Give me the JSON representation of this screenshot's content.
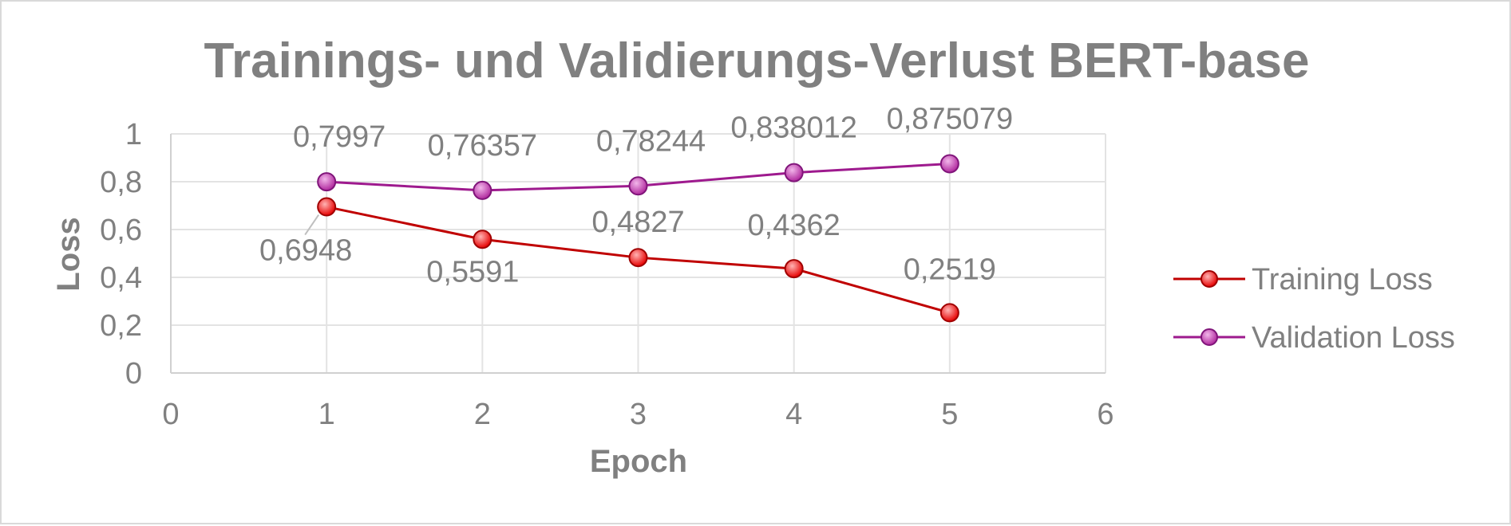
{
  "chart_data": {
    "type": "scatter",
    "title": "Trainings- und Validierungs-Verlust BERT-base",
    "xlabel": "Epoch",
    "ylabel": "Loss",
    "xlim": [
      0,
      6
    ],
    "ylim": [
      0,
      1
    ],
    "x_ticks": [
      "0",
      "1",
      "2",
      "3",
      "4",
      "5",
      "6"
    ],
    "y_ticks": [
      "0",
      "0,2",
      "0,4",
      "0,6",
      "0,8",
      "1"
    ],
    "grid": true,
    "legend_position": "right",
    "series": [
      {
        "name": "Training Loss",
        "color": "#c00000",
        "marker_color": "#ff4d4d",
        "x": [
          1,
          2,
          3,
          4,
          5
        ],
        "y": [
          0.6948,
          0.5591,
          0.4827,
          0.4362,
          0.2519
        ],
        "labels": [
          "0,6948",
          "0,5591",
          "0,4827",
          "0,4362",
          "0,2519"
        ]
      },
      {
        "name": "Validation Loss",
        "color": "#9e1a8e",
        "marker_color": "#d455c4",
        "x": [
          1,
          2,
          3,
          4,
          5
        ],
        "y": [
          0.7997,
          0.76357,
          0.78244,
          0.838012,
          0.875079
        ],
        "labels": [
          "0,7997",
          "0,76357",
          "0,78244",
          "0,838012",
          "0,875079"
        ]
      }
    ]
  }
}
